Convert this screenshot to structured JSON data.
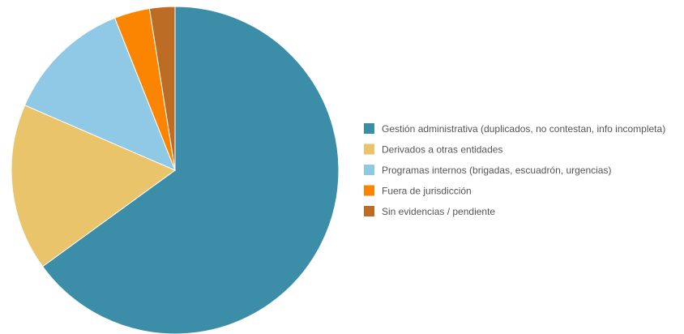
{
  "chart_data": {
    "type": "pie",
    "legend_position": "right",
    "slices": [
      {
        "label": "Gestión administrativa (duplicados, no contestan, info incompleta)",
        "value": 65.0,
        "color": "#3c8da8"
      },
      {
        "label": "Derivados a otras entidades",
        "value": 16.5,
        "color": "#e9c46a"
      },
      {
        "label": "Programas internos (brigadas, escuadrón, urgencias)",
        "value": 12.5,
        "color": "#90c9e6"
      },
      {
        "label": "Fuera de jurisdicción",
        "value": 3.5,
        "color": "#fb8500"
      },
      {
        "label": "Sin evidencias / pendiente",
        "value": 2.5,
        "color": "#bc6c25"
      }
    ]
  }
}
